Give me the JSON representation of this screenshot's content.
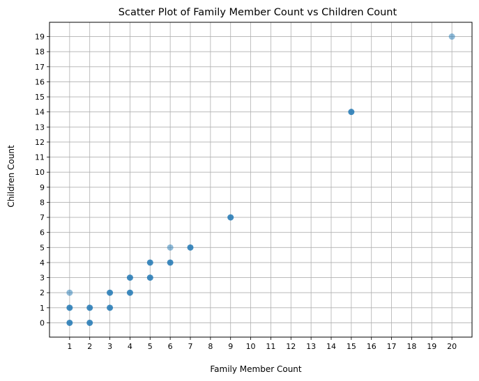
{
  "chart_data": {
    "type": "scatter",
    "title": "Scatter Plot of Family Member Count vs Children Count",
    "xlabel": "Family Member Count",
    "ylabel": "Children Count",
    "xlim": [
      0,
      21
    ],
    "ylim": [
      -0.95,
      19.95
    ],
    "x_ticks": [
      "1",
      "2",
      "3",
      "4",
      "5",
      "6",
      "7",
      "8",
      "9",
      "10",
      "11",
      "12",
      "13",
      "14",
      "15",
      "16",
      "17",
      "18",
      "19",
      "20"
    ],
    "y_ticks": [
      "0",
      "1",
      "2",
      "3",
      "4",
      "5",
      "6",
      "7",
      "8",
      "9",
      "10",
      "11",
      "12",
      "13",
      "14",
      "15",
      "16",
      "17",
      "18",
      "19"
    ],
    "grid": true,
    "marker_color": "#1f77b4",
    "points": [
      {
        "x": 1,
        "y": 0,
        "dense": true
      },
      {
        "x": 1,
        "y": 1,
        "dense": true
      },
      {
        "x": 1,
        "y": 2,
        "dense": false
      },
      {
        "x": 2,
        "y": 0,
        "dense": true
      },
      {
        "x": 2,
        "y": 1,
        "dense": true
      },
      {
        "x": 3,
        "y": 1,
        "dense": true
      },
      {
        "x": 3,
        "y": 2,
        "dense": true
      },
      {
        "x": 4,
        "y": 2,
        "dense": true
      },
      {
        "x": 4,
        "y": 3,
        "dense": true
      },
      {
        "x": 5,
        "y": 3,
        "dense": true
      },
      {
        "x": 5,
        "y": 4,
        "dense": true
      },
      {
        "x": 6,
        "y": 4,
        "dense": true
      },
      {
        "x": 6,
        "y": 5,
        "dense": false
      },
      {
        "x": 7,
        "y": 5,
        "dense": true
      },
      {
        "x": 9,
        "y": 7,
        "dense": true
      },
      {
        "x": 15,
        "y": 14,
        "dense": true
      },
      {
        "x": 20,
        "y": 19,
        "dense": false
      }
    ]
  }
}
